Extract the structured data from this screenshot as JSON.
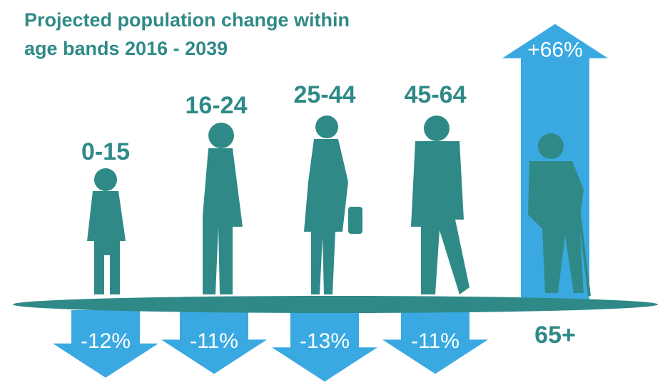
{
  "chart_data": {
    "type": "arrow",
    "title": "Projected population change within age bands 2016 - 2039",
    "title_lines": [
      "Projected population change within",
      "age bands 2016 - 2039"
    ],
    "categories": [
      "0-15",
      "16-24",
      "25-44",
      "45-64",
      "65+"
    ],
    "values": [
      -12,
      -11,
      -13,
      -11,
      66
    ],
    "value_labels": [
      "-12%",
      "-11%",
      "-13%",
      "-11%",
      "+66%"
    ],
    "color": "#3aa9e2",
    "figure_color": "#2f8a87"
  }
}
